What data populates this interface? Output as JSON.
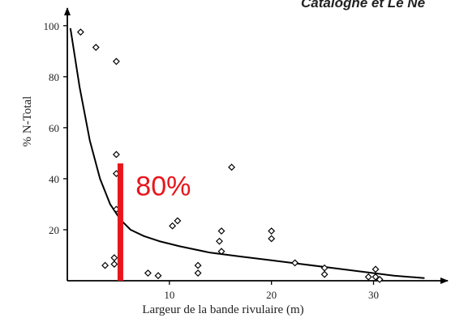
{
  "caption": "Catalogne et Le Ne",
  "chart_data": {
    "type": "scatter",
    "title": "",
    "xlabel": "Largeur de la bande rivulaire (m)",
    "ylabel": "% N-Total",
    "xlim": [
      0,
      36
    ],
    "ylim": [
      0,
      105
    ],
    "x_ticks": [
      10,
      20,
      30
    ],
    "y_ticks": [
      20,
      40,
      60,
      80,
      100
    ],
    "grid": false,
    "legend": "none",
    "series": [
      {
        "marker": "diamond",
        "points": [
          {
            "x": 1.3,
            "y": 97.5
          },
          {
            "x": 2.8,
            "y": 91.5
          },
          {
            "x": 4.8,
            "y": 86
          },
          {
            "x": 4.8,
            "y": 49.5
          },
          {
            "x": 4.8,
            "y": 42
          },
          {
            "x": 4.8,
            "y": 28
          },
          {
            "x": 4.6,
            "y": 9
          },
          {
            "x": 4.6,
            "y": 6.5
          },
          {
            "x": 3.7,
            "y": 6
          },
          {
            "x": 7.9,
            "y": 3
          },
          {
            "x": 8.9,
            "y": 2
          },
          {
            "x": 10.3,
            "y": 21.5
          },
          {
            "x": 10.8,
            "y": 23.5
          },
          {
            "x": 12.8,
            "y": 6
          },
          {
            "x": 12.8,
            "y": 3
          },
          {
            "x": 15.1,
            "y": 19.5
          },
          {
            "x": 14.9,
            "y": 15.5
          },
          {
            "x": 15.1,
            "y": 11.5
          },
          {
            "x": 16.1,
            "y": 44.5
          },
          {
            "x": 20.0,
            "y": 19.5
          },
          {
            "x": 20.0,
            "y": 16.5
          },
          {
            "x": 22.3,
            "y": 7
          },
          {
            "x": 25.2,
            "y": 5
          },
          {
            "x": 25.2,
            "y": 2.5
          },
          {
            "x": 29.5,
            "y": 1.5
          },
          {
            "x": 30.2,
            "y": 4.5
          },
          {
            "x": 30.2,
            "y": 1.5
          },
          {
            "x": 30.6,
            "y": 0.5
          }
        ]
      },
      {
        "type": "line",
        "role": "fitted-curve",
        "color": "#000000",
        "points": [
          {
            "x": 0.3,
            "y": 99
          },
          {
            "x": 1.2,
            "y": 76
          },
          {
            "x": 2.2,
            "y": 55
          },
          {
            "x": 3.2,
            "y": 40
          },
          {
            "x": 4.2,
            "y": 30
          },
          {
            "x": 5.2,
            "y": 24
          },
          {
            "x": 6.2,
            "y": 20
          },
          {
            "x": 7.5,
            "y": 17.5
          },
          {
            "x": 9,
            "y": 15.5
          },
          {
            "x": 11,
            "y": 13.5
          },
          {
            "x": 14,
            "y": 11
          },
          {
            "x": 17,
            "y": 9.5
          },
          {
            "x": 20,
            "y": 8
          },
          {
            "x": 23,
            "y": 6.5
          },
          {
            "x": 26,
            "y": 5
          },
          {
            "x": 29,
            "y": 3.5
          },
          {
            "x": 32,
            "y": 2
          },
          {
            "x": 35,
            "y": 1
          }
        ]
      }
    ],
    "annotations": [
      {
        "type": "vertical-bar",
        "x": 5.2,
        "y_from": 0,
        "y_to": 46,
        "color": "#e8151c"
      },
      {
        "type": "text",
        "text": "80%",
        "x": 6.7,
        "y": 33.5,
        "color": "#e8151c"
      }
    ]
  }
}
